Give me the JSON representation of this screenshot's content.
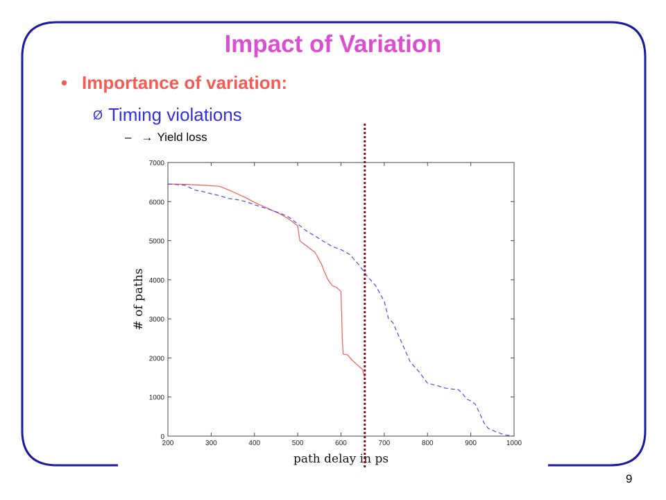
{
  "slide": {
    "title": "Impact of Variation",
    "bullets": [
      {
        "text": "Importance of variation:",
        "marker": "•"
      },
      {
        "text": "Timing violations",
        "marker": "Ø"
      },
      {
        "text": "Yield loss",
        "marker": "–",
        "arrow": "→"
      }
    ],
    "page_number": "9"
  },
  "colors": {
    "title": "#d94fd0",
    "bullet1": "#f25c54",
    "bullet2": "#3030e0",
    "frame": "#1a1aa0",
    "solid_series": "#f25c54",
    "dashed_series": "#4a4af0",
    "threshold": "#8b0a1a"
  },
  "chart_data": {
    "type": "line",
    "xlabel": "path delay in ps",
    "ylabel": "# of paths",
    "xlim": [
      200,
      1000
    ],
    "ylim": [
      0,
      7000
    ],
    "xticks": [
      200,
      300,
      400,
      500,
      600,
      700,
      800,
      900,
      1000
    ],
    "yticks": [
      0,
      1000,
      2000,
      3000,
      4000,
      5000,
      6000,
      7000
    ],
    "threshold_x": 655,
    "series": [
      {
        "style": "solid",
        "x": [
          200,
          240,
          280,
          320,
          340,
          360,
          380,
          400,
          420,
          440,
          460,
          480,
          500,
          505,
          510,
          520,
          540,
          555,
          560,
          570,
          580,
          590,
          600,
          603,
          605,
          615,
          625,
          635,
          640,
          645,
          650,
          652,
          655
        ],
        "y": [
          6450,
          6440,
          6420,
          6390,
          6300,
          6200,
          6100,
          5980,
          5880,
          5780,
          5680,
          5550,
          5380,
          5000,
          4950,
          4870,
          4700,
          4400,
          4250,
          4000,
          3850,
          3800,
          3700,
          2500,
          2100,
          2080,
          1950,
          1850,
          1800,
          1750,
          1700,
          1600,
          1500
        ]
      },
      {
        "style": "dashed",
        "x": [
          200,
          240,
          260,
          280,
          300,
          320,
          340,
          360,
          380,
          400,
          420,
          440,
          460,
          480,
          500,
          520,
          540,
          560,
          580,
          600,
          620,
          640,
          660,
          680,
          700,
          710,
          720,
          740,
          760,
          780,
          800,
          820,
          840,
          860,
          870,
          880,
          890,
          900,
          910,
          920,
          930,
          940,
          960,
          980,
          1000
        ],
        "y": [
          6450,
          6420,
          6300,
          6260,
          6200,
          6150,
          6080,
          6050,
          6000,
          5920,
          5850,
          5780,
          5700,
          5600,
          5430,
          5250,
          5120,
          4980,
          4850,
          4770,
          4650,
          4400,
          4100,
          3850,
          3450,
          3000,
          2900,
          2400,
          1900,
          1650,
          1350,
          1300,
          1230,
          1200,
          1200,
          1100,
          950,
          900,
          820,
          600,
          350,
          200,
          100,
          30,
          0
        ]
      }
    ]
  }
}
